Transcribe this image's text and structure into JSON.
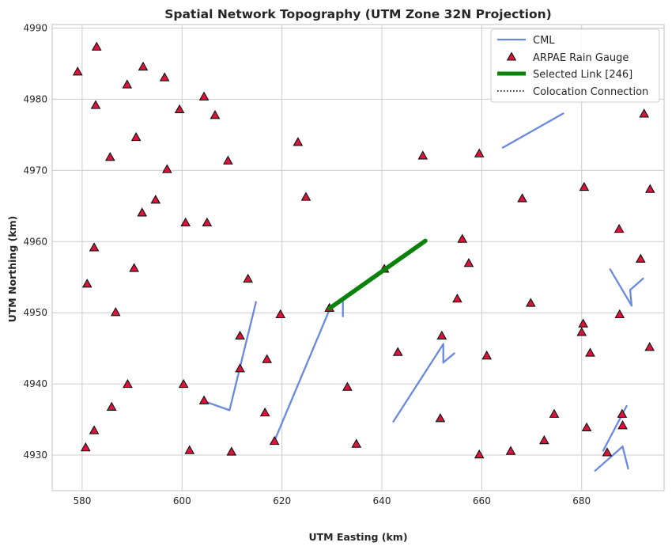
{
  "chart_data": {
    "type": "scatter",
    "title": "Spatial Network Topography (UTM Zone 32N Projection)",
    "xlabel": "UTM Easting (km)",
    "ylabel": "UTM Northing (km)",
    "xlim": [
      574,
      696.5
    ],
    "ylim": [
      4925,
      4990.5
    ],
    "xticks": [
      580,
      600,
      620,
      640,
      660,
      680
    ],
    "yticks": [
      4930,
      4940,
      4950,
      4960,
      4970,
      4980,
      4990
    ],
    "grid": true,
    "legend_position": "top-right",
    "legend": [
      {
        "label": "CML",
        "kind": "line"
      },
      {
        "label": "ARPAE Rain Gauge",
        "kind": "marker"
      },
      {
        "label": "Selected Link [246]",
        "kind": "thick-line"
      },
      {
        "label": "Colocation Connection",
        "kind": "dotted-line"
      }
    ],
    "colors": {
      "cml": "#6989e0",
      "gauge_fill": "#dc143c",
      "gauge_edge": "#111111",
      "selected": "#0a820a",
      "grid": "#cccccc",
      "frame": "#cccccc",
      "colocation": "#000000"
    },
    "series": [
      {
        "name": "CML",
        "segments": [
          [
            [
              604.3,
              4937.6
            ],
            [
              609.5,
              4936.3
            ]
          ],
          [
            [
              609.5,
              4936.3
            ],
            [
              614.8,
              4951.5
            ]
          ],
          [
            [
              618.5,
              4932.0
            ],
            [
              629.5,
              4950.4
            ]
          ],
          [
            [
              629.5,
              4950.4
            ],
            [
              632.2,
              4952.0
            ]
          ],
          [
            [
              632.2,
              4952.0
            ],
            [
              632.2,
              4949.5
            ]
          ],
          [
            [
              642.3,
              4934.7
            ],
            [
              652.3,
              4945.6
            ]
          ],
          [
            [
              652.3,
              4945.6
            ],
            [
              652.3,
              4943.0
            ]
          ],
          [
            [
              652.3,
              4943.0
            ],
            [
              654.5,
              4944.3
            ]
          ],
          [
            [
              664.2,
              4973.2
            ],
            [
              676.3,
              4978.0
            ]
          ],
          [
            [
              685.7,
              4956.1
            ],
            [
              690.0,
              4951.0
            ]
          ],
          [
            [
              690.0,
              4951.0
            ],
            [
              689.7,
              4953.2
            ]
          ],
          [
            [
              689.7,
              4953.2
            ],
            [
              692.3,
              4954.8
            ]
          ],
          [
            [
              682.7,
              4927.8
            ],
            [
              688.2,
              4931.2
            ]
          ],
          [
            [
              688.2,
              4931.2
            ],
            [
              689.3,
              4928.1
            ]
          ],
          [
            [
              684.3,
              4930.6
            ],
            [
              689.0,
              4936.9
            ]
          ]
        ]
      },
      {
        "name": "ARPAE Rain Gauge",
        "points": [
          [
            579.1,
            4983.8
          ],
          [
            582.9,
            4987.3
          ],
          [
            582.7,
            4979.1
          ],
          [
            589.0,
            4982.0
          ],
          [
            592.2,
            4984.5
          ],
          [
            596.5,
            4983.0
          ],
          [
            599.5,
            4978.5
          ],
          [
            604.4,
            4980.3
          ],
          [
            606.6,
            4977.7
          ],
          [
            590.8,
            4974.6
          ],
          [
            585.6,
            4971.8
          ],
          [
            597.0,
            4970.1
          ],
          [
            609.2,
            4971.3
          ],
          [
            623.2,
            4973.9
          ],
          [
            594.7,
            4965.8
          ],
          [
            592.0,
            4964.0
          ],
          [
            600.7,
            4962.6
          ],
          [
            605.0,
            4962.6
          ],
          [
            624.8,
            4966.2
          ],
          [
            582.4,
            4959.1
          ],
          [
            590.4,
            4956.2
          ],
          [
            581.0,
            4954.0
          ],
          [
            586.7,
            4950.0
          ],
          [
            613.2,
            4954.7
          ],
          [
            619.7,
            4949.7
          ],
          [
            611.6,
            4946.7
          ],
          [
            611.6,
            4942.1
          ],
          [
            617.0,
            4943.4
          ],
          [
            589.1,
            4939.9
          ],
          [
            600.3,
            4939.9
          ],
          [
            604.4,
            4937.6
          ],
          [
            585.9,
            4936.7
          ],
          [
            616.6,
            4935.9
          ],
          [
            582.4,
            4933.4
          ],
          [
            580.7,
            4931.0
          ],
          [
            601.5,
            4930.6
          ],
          [
            609.9,
            4930.4
          ],
          [
            618.5,
            4931.9
          ],
          [
            629.5,
            4950.6
          ],
          [
            640.5,
            4956.1
          ],
          [
            633.1,
            4939.5
          ],
          [
            634.9,
            4931.5
          ],
          [
            643.2,
            4944.4
          ],
          [
            648.2,
            4972.0
          ],
          [
            659.5,
            4972.3
          ],
          [
            656.1,
            4960.3
          ],
          [
            657.4,
            4956.9
          ],
          [
            655.1,
            4951.9
          ],
          [
            652.0,
            4946.7
          ],
          [
            651.7,
            4935.1
          ],
          [
            661.0,
            4943.9
          ],
          [
            659.5,
            4930.0
          ],
          [
            665.8,
            4930.5
          ],
          [
            668.1,
            4966.0
          ],
          [
            669.8,
            4951.3
          ],
          [
            672.5,
            4932.0
          ],
          [
            674.5,
            4935.7
          ],
          [
            680.5,
            4967.6
          ],
          [
            680.3,
            4948.4
          ],
          [
            680.0,
            4947.2
          ],
          [
            681.7,
            4944.3
          ],
          [
            687.5,
            4961.7
          ],
          [
            687.6,
            4949.7
          ],
          [
            681.0,
            4933.8
          ],
          [
            685.1,
            4930.3
          ],
          [
            688.1,
            4935.7
          ],
          [
            688.2,
            4934.1
          ],
          [
            692.5,
            4977.9
          ],
          [
            693.7,
            4967.3
          ],
          [
            691.8,
            4957.5
          ],
          [
            693.6,
            4945.1
          ]
        ]
      },
      {
        "name": "Selected Link [246]",
        "segments": [
          [
            [
              629.5,
              4950.6
            ],
            [
              648.7,
              4960.1
            ]
          ]
        ]
      },
      {
        "name": "Colocation Connection",
        "segments": []
      }
    ]
  }
}
